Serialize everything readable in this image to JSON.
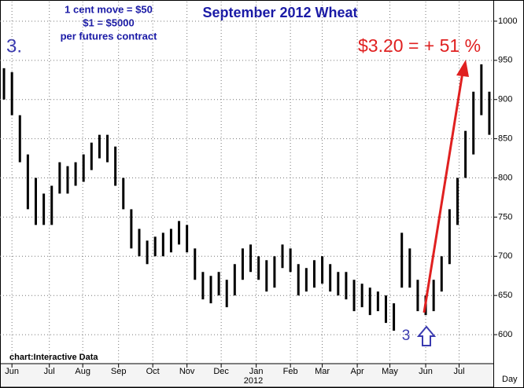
{
  "chart_data": {
    "type": "range_bar",
    "title": "September 2012 Wheat",
    "notes": [
      "1 cent move = $50",
      "$1 = $5000",
      "per futures contract"
    ],
    "panel_label": "3.",
    "annotation": "$3.20 = + 51 %",
    "marker_label": "3",
    "source": "chart:Interactive Data",
    "year_label": "2012",
    "x_unit": "Day",
    "x": [
      0,
      1,
      2,
      3,
      4,
      5,
      6,
      7,
      8,
      9,
      10,
      11,
      12,
      13,
      14,
      15,
      16,
      17,
      18,
      19,
      20,
      21,
      22,
      23,
      24,
      25,
      26,
      27,
      28,
      29,
      30,
      31,
      32,
      33,
      34,
      35,
      36,
      37,
      38,
      39,
      40,
      41,
      42,
      43,
      44,
      45,
      46,
      47,
      48,
      49,
      50,
      51,
      52,
      53,
      54,
      55,
      56,
      57,
      58,
      59,
      60,
      61
    ],
    "series": [
      {
        "color": "#000000",
        "high": [
          940,
          935,
          880,
          830,
          800,
          780,
          790,
          820,
          815,
          820,
          830,
          845,
          855,
          855,
          840,
          800,
          760,
          735,
          720,
          725,
          730,
          735,
          745,
          740,
          710,
          680,
          675,
          680,
          670,
          690,
          710,
          715,
          700,
          695,
          700,
          715,
          710,
          690,
          685,
          695,
          700,
          690,
          680,
          680,
          670,
          665,
          660,
          655,
          650,
          640,
          730,
          710,
          670,
          650,
          670,
          700,
          760,
          800,
          860,
          910,
          945,
          910
        ],
        "low": [
          900,
          880,
          820,
          760,
          740,
          740,
          740,
          780,
          780,
          790,
          795,
          810,
          825,
          820,
          790,
          760,
          710,
          700,
          690,
          700,
          700,
          705,
          715,
          705,
          670,
          645,
          640,
          650,
          635,
          650,
          670,
          680,
          670,
          655,
          660,
          685,
          680,
          650,
          655,
          660,
          665,
          655,
          650,
          645,
          630,
          635,
          625,
          630,
          615,
          605,
          660,
          660,
          630,
          625,
          630,
          655,
          690,
          740,
          800,
          830,
          880,
          855
        ]
      }
    ],
    "xlim": [
      -0.5,
      61.5
    ],
    "xticks": [
      {
        "value": 1,
        "label": "Jun"
      },
      {
        "value": 5.7,
        "label": "Jul"
      },
      {
        "value": 9.9,
        "label": "Aug"
      },
      {
        "value": 14.4,
        "label": "Sep"
      },
      {
        "value": 18.7,
        "label": "Oct"
      },
      {
        "value": 23,
        "label": "Nov"
      },
      {
        "value": 27.3,
        "label": "Dec"
      },
      {
        "value": 31.7,
        "label": "Jan"
      },
      {
        "value": 36,
        "label": "Feb"
      },
      {
        "value": 40,
        "label": "Mar"
      },
      {
        "value": 44.4,
        "label": "Apr"
      },
      {
        "value": 48.5,
        "label": "May"
      },
      {
        "value": 53,
        "label": "Jun"
      },
      {
        "value": 57.2,
        "label": "Jul"
      }
    ],
    "ylim": [
      563,
      1025
    ],
    "yticks": [
      600,
      650,
      700,
      750,
      800,
      850,
      900,
      950,
      1000
    ],
    "grid": true
  }
}
